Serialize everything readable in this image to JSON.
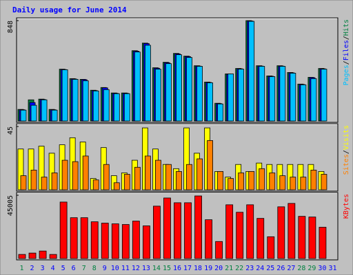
{
  "chart_data": {
    "type": "bar",
    "title": "Daily usage for June 2014",
    "legend_separator": "/",
    "categories": [
      "1",
      "2",
      "3",
      "4",
      "5",
      "6",
      "7",
      "8",
      "9",
      "10",
      "11",
      "12",
      "13",
      "14",
      "15",
      "16",
      "17",
      "18",
      "19",
      "20",
      "21",
      "22",
      "23",
      "24",
      "25",
      "26",
      "27",
      "28",
      "29",
      "30",
      "31"
    ],
    "category_colors": [
      "#008040",
      "#0000ff",
      "#0000ff",
      "#0000ff",
      "#0000ff",
      "#0000ff",
      "#008040",
      "#008040",
      "#0000ff",
      "#0000ff",
      "#0000ff",
      "#0000ff",
      "#0000ff",
      "#008040",
      "#008040",
      "#0000ff",
      "#0000ff",
      "#0000ff",
      "#0000ff",
      "#0000ff",
      "#008040",
      "#008040",
      "#0000ff",
      "#0000ff",
      "#0000ff",
      "#0000ff",
      "#0000ff",
      "#008040",
      "#008040",
      "#0000ff",
      "#0000ff"
    ],
    "panels": [
      {
        "ylim": [
          0,
          848
        ],
        "yticks": [
          848
        ],
        "series": [
          {
            "name": "Hits",
            "color": "#008040",
            "values": [
              98,
              179,
              185,
              98,
              438,
              358,
              352,
              260,
              283,
              237,
              237,
              594,
              658,
              450,
              496,
              571,
              548,
              467,
              329,
              150,
              398,
              444,
              848,
              467,
              381,
              467,
              410,
              312,
              369,
              444,
              null
            ]
          },
          {
            "name": "Files",
            "color": "#0000ff",
            "values": [
              95,
              156,
              182,
              95,
              435,
              355,
              349,
              257,
              280,
              234,
              234,
              590,
              654,
              446,
              492,
              567,
              544,
              464,
              326,
              147,
              395,
              441,
              845,
              464,
              378,
              464,
              407,
              309,
              366,
              441,
              null
            ]
          },
          {
            "name": "Pages",
            "color": "#00c0ff",
            "values": [
              92,
              133,
              179,
              92,
              433,
              352,
              340,
              254,
              265,
              231,
              231,
              583,
              640,
              438,
              485,
              560,
              537,
              462,
              323,
              144,
              398,
              438,
              842,
              462,
              375,
              462,
              404,
              306,
              358,
              438,
              null
            ]
          }
        ]
      },
      {
        "ylim": [
          0,
          45
        ],
        "yticks": [
          45
        ],
        "series": [
          {
            "name": "Visits",
            "color": "#ffff00",
            "values": [
              29,
              29,
              31,
              26,
              32,
              37,
              34,
              8,
              30,
              10,
              12,
              21,
              44,
              29,
              18,
              15,
              44,
              26,
              44,
              13,
              9,
              18,
              13,
              19,
              18,
              18,
              18,
              18,
              18,
              13,
              null
            ]
          },
          {
            "name": "Sites",
            "color": "#ff8000",
            "values": [
              10,
              14,
              9,
              12,
              21,
              20,
              24,
              7,
              18,
              5,
              11,
              16,
              24,
              21,
              18,
              13,
              18,
              22,
              35,
              13,
              8,
              12,
              13,
              15,
              12,
              10,
              9,
              9,
              14,
              11,
              null
            ]
          }
        ]
      },
      {
        "ylim": [
          0,
          45005
        ],
        "yticks": [
          45005
        ],
        "series": [
          {
            "name": "KBytes",
            "color": "#ff0000",
            "values": [
              2900,
              3870,
              5320,
              2900,
              40165,
              29040,
              29040,
              26135,
              25170,
              24680,
              24200,
              26620,
              23230,
              37260,
              43070,
              39680,
              39680,
              44520,
              27590,
              12100,
              38230,
              32910,
              38230,
              28560,
              15490,
              36780,
              39200,
              30010,
              29525,
              22260,
              null
            ]
          }
        ]
      }
    ]
  }
}
